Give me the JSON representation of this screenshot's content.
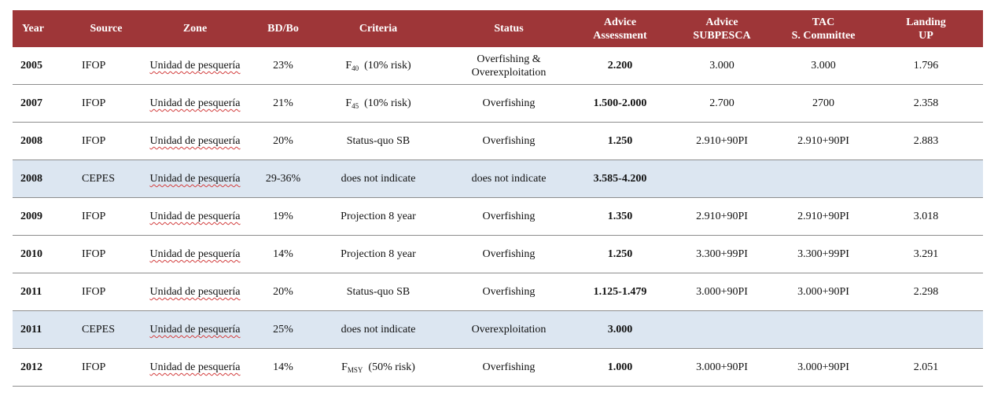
{
  "headers": {
    "year": "Year",
    "source": "Source",
    "zone": "Zone",
    "bdbo": "BD/Bo",
    "criteria": "Criteria",
    "status": "Status",
    "advice_assessment_1": "Advice",
    "advice_assessment_2": "Assessment",
    "advice_subpesca_1": "Advice",
    "advice_subpesca_2": "SUBPESCA",
    "tac_1": "TAC",
    "tac_2": "S. Committee",
    "landing_1": "Landing",
    "landing_2": "UP"
  },
  "rows": [
    {
      "year": "2005",
      "source": "IFOP",
      "zone": "Unidad de pesquería",
      "bdbo": "23%",
      "crit_main": "F",
      "crit_sub": "40",
      "crit_rest": "(10% risk)",
      "status_1": "Overfishing &",
      "status_2": "Overexploitation",
      "advice": "2.200",
      "subpesca": "3.000",
      "tac": "3.000",
      "landing": "1.796",
      "shaded": false
    },
    {
      "year": "2007",
      "source": "IFOP",
      "zone": "Unidad de pesquería",
      "bdbo": "21%",
      "crit_main": "F",
      "crit_sub": "45",
      "crit_rest": "(10% risk)",
      "status_1": "Overfishing",
      "status_2": "",
      "advice": "1.500-2.000",
      "subpesca": "2.700",
      "tac": "2700",
      "landing": "2.358",
      "shaded": false
    },
    {
      "year": "2008",
      "source": "IFOP",
      "zone": "Unidad de pesquería",
      "bdbo": "20%",
      "crit_main": "Status-quo SB",
      "crit_sub": "",
      "crit_rest": "",
      "status_1": "Overfishing",
      "status_2": "",
      "advice": "1.250",
      "subpesca": "2.910+90PI",
      "tac": "2.910+90PI",
      "landing": "2.883",
      "shaded": false
    },
    {
      "year": "2008",
      "source": "CEPES",
      "zone": "Unidad de pesquería",
      "bdbo": "29-36%",
      "crit_main": "does not indicate",
      "crit_sub": "",
      "crit_rest": "",
      "status_1": "does not indicate",
      "status_2": "",
      "advice": "3.585-4.200",
      "subpesca": "",
      "tac": "",
      "landing": "",
      "shaded": true
    },
    {
      "year": "2009",
      "source": "IFOP",
      "zone": "Unidad de pesquería",
      "bdbo": "19%",
      "crit_main": "Projection 8 year",
      "crit_sub": "",
      "crit_rest": "",
      "status_1": "Overfishing",
      "status_2": "",
      "advice": "1.350",
      "subpesca": "2.910+90PI",
      "tac": "2.910+90PI",
      "landing": "3.018",
      "shaded": false
    },
    {
      "year": "2010",
      "source": "IFOP",
      "zone": "Unidad de pesquería",
      "bdbo": "14%",
      "crit_main": "Projection 8 year",
      "crit_sub": "",
      "crit_rest": "",
      "status_1": "Overfishing",
      "status_2": "",
      "advice": "1.250",
      "subpesca": "3.300+99PI",
      "tac": "3.300+99PI",
      "landing": "3.291",
      "shaded": false
    },
    {
      "year": "2011",
      "source": "IFOP",
      "zone": "Unidad de pesquería",
      "bdbo": "20%",
      "crit_main": "Status-quo SB",
      "crit_sub": "",
      "crit_rest": "",
      "status_1": "Overfishing",
      "status_2": "",
      "advice": "1.125-1.479",
      "subpesca": "3.000+90PI",
      "tac": "3.000+90PI",
      "landing": "2.298",
      "shaded": false
    },
    {
      "year": "2011",
      "source": "CEPES",
      "zone": "Unidad de pesquería",
      "bdbo": "25%",
      "crit_main": "does not indicate",
      "crit_sub": "",
      "crit_rest": "",
      "status_1": "Overexploitation",
      "status_2": "",
      "advice": "3.000",
      "subpesca": "",
      "tac": "",
      "landing": "",
      "shaded": true
    },
    {
      "year": "2012",
      "source": "IFOP",
      "zone": "Unidad de pesquería",
      "bdbo": "14%",
      "crit_main": "F",
      "crit_sub": "MSY",
      "crit_rest": "(50% risk)",
      "status_1": "Overfishing",
      "status_2": "",
      "advice": "1.000",
      "subpesca": "3.000+90PI",
      "tac": "3.000+90PI",
      "landing": "2.051",
      "shaded": false
    }
  ]
}
